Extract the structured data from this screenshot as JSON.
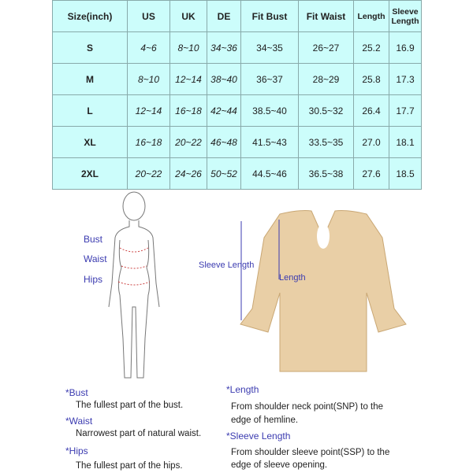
{
  "table": {
    "headers": [
      "Size(inch)",
      "US",
      "UK",
      "DE",
      "Fit Bust",
      "Fit Waist",
      "Length",
      "Sleeve Length"
    ],
    "rows": [
      [
        "S",
        "4~6",
        "8~10",
        "34~36",
        "34~35",
        "26~27",
        "25.2",
        "16.9"
      ],
      [
        "M",
        "8~10",
        "12~14",
        "38~40",
        "36~37",
        "28~29",
        "25.8",
        "17.3"
      ],
      [
        "L",
        "12~14",
        "16~18",
        "42~44",
        "38.5~40",
        "30.5~32",
        "26.4",
        "17.7"
      ],
      [
        "XL",
        "16~18",
        "20~22",
        "46~48",
        "41.5~43",
        "33.5~35",
        "27.0",
        "18.1"
      ],
      [
        "2XL",
        "20~22",
        "24~26",
        "50~52",
        "44.5~46",
        "36.5~38",
        "27.6",
        "18.5"
      ]
    ]
  },
  "figure_labels": {
    "bust": "Bust",
    "waist": "Waist",
    "hips": "Hips",
    "sleeve_length": "Sleeve Length",
    "length": "Length"
  },
  "notes": {
    "bust_title": "*Bust",
    "bust_text": "The fullest part of the bust.",
    "waist_title": "*Waist",
    "waist_text": "Narrowest part of natural waist.",
    "hips_title": "*Hips",
    "hips_text": "The fullest part of the hips.",
    "length_title": "*Length",
    "length_text1": "From shoulder neck point(SNP) to the",
    "length_text2": "edge of hemline.",
    "sleeve_title": "*Sleeve Length",
    "sleeve_text1": "From shoulder sleeve point(SSP) to the",
    "sleeve_text2": "edge of sleeve opening."
  },
  "colors": {
    "table_bg": "#ccfdfb",
    "label": "#3b3bb0",
    "garment": "#e9cfa6"
  }
}
